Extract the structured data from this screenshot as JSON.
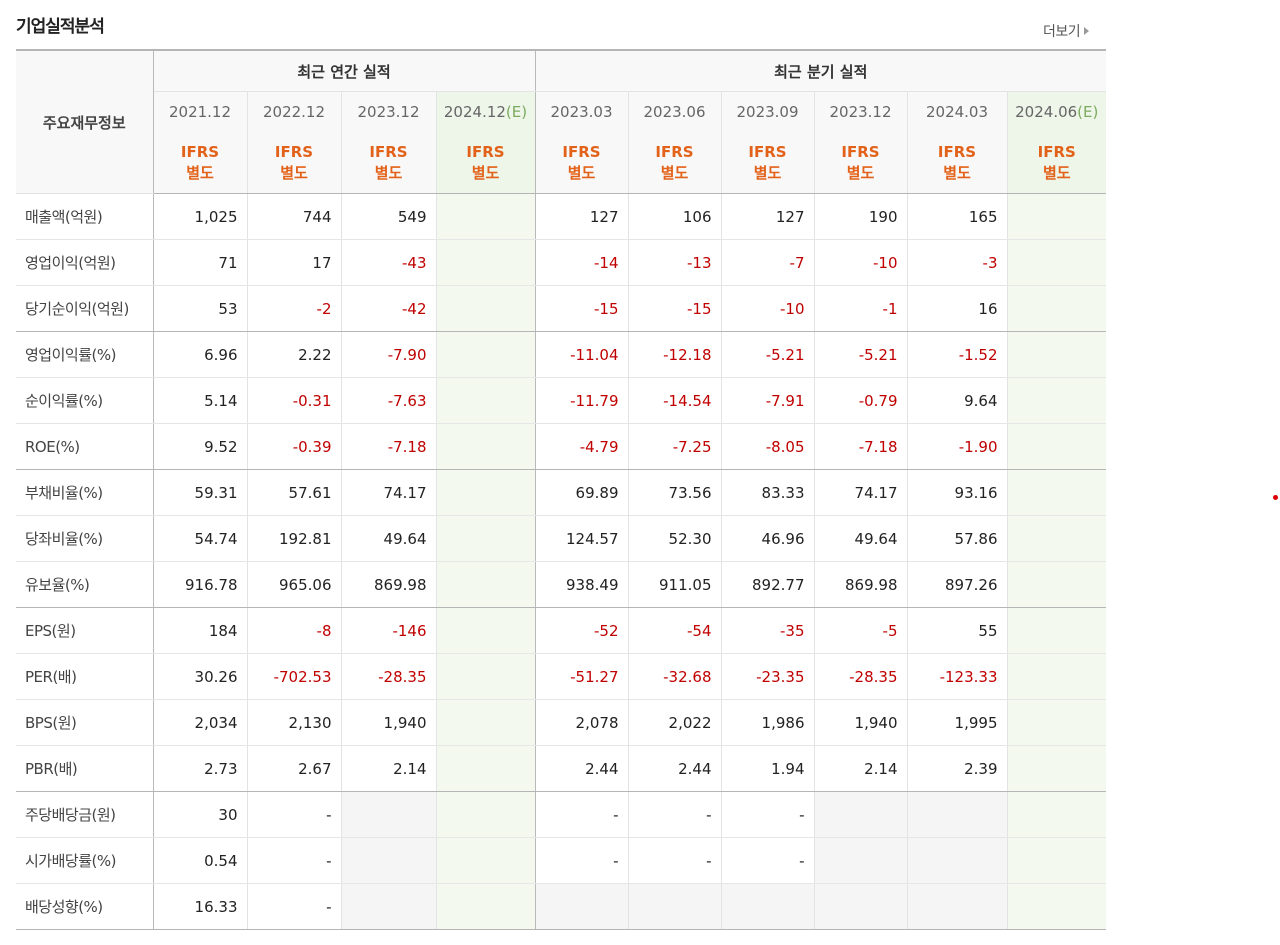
{
  "title": "기업실적분석",
  "more_label": "더보기",
  "header": {
    "row_label": "주요재무정보",
    "annual_group": "최근 연간 실적",
    "quarter_group": "최근 분기 실적",
    "annual_periods": [
      "2021.12",
      "2022.12",
      "2023.12",
      "2024.12"
    ],
    "quarter_periods": [
      "2023.03",
      "2023.06",
      "2023.09",
      "2023.12",
      "2024.03",
      "2024.06"
    ],
    "estimate_mark": "(E)",
    "ifrs_line1": "IFRS",
    "ifrs_line2": "별도"
  },
  "rows": [
    {
      "label": "매출액(억원)",
      "annual": [
        "1,025",
        "744",
        "549",
        ""
      ],
      "quarter": [
        "127",
        "106",
        "127",
        "190",
        "165",
        ""
      ]
    },
    {
      "label": "영업이익(억원)",
      "annual": [
        "71",
        "17",
        "-43",
        ""
      ],
      "quarter": [
        "-14",
        "-13",
        "-7",
        "-10",
        "-3",
        ""
      ]
    },
    {
      "label": "당기순이익(억원)",
      "annual": [
        "53",
        "-2",
        "-42",
        ""
      ],
      "quarter": [
        "-15",
        "-15",
        "-10",
        "-1",
        "16",
        ""
      ]
    },
    {
      "label": "영업이익률(%)",
      "annual": [
        "6.96",
        "2.22",
        "-7.90",
        ""
      ],
      "quarter": [
        "-11.04",
        "-12.18",
        "-5.21",
        "-5.21",
        "-1.52",
        ""
      ]
    },
    {
      "label": "순이익률(%)",
      "annual": [
        "5.14",
        "-0.31",
        "-7.63",
        ""
      ],
      "quarter": [
        "-11.79",
        "-14.54",
        "-7.91",
        "-0.79",
        "9.64",
        ""
      ]
    },
    {
      "label": "ROE(%)",
      "annual": [
        "9.52",
        "-0.39",
        "-7.18",
        ""
      ],
      "quarter": [
        "-4.79",
        "-7.25",
        "-8.05",
        "-7.18",
        "-1.90",
        ""
      ]
    },
    {
      "label": "부채비율(%)",
      "annual": [
        "59.31",
        "57.61",
        "74.17",
        ""
      ],
      "quarter": [
        "69.89",
        "73.56",
        "83.33",
        "74.17",
        "93.16",
        ""
      ]
    },
    {
      "label": "당좌비율(%)",
      "annual": [
        "54.74",
        "192.81",
        "49.64",
        ""
      ],
      "quarter": [
        "124.57",
        "52.30",
        "46.96",
        "49.64",
        "57.86",
        ""
      ]
    },
    {
      "label": "유보율(%)",
      "annual": [
        "916.78",
        "965.06",
        "869.98",
        ""
      ],
      "quarter": [
        "938.49",
        "911.05",
        "892.77",
        "869.98",
        "897.26",
        ""
      ]
    },
    {
      "label": "EPS(원)",
      "annual": [
        "184",
        "-8",
        "-146",
        ""
      ],
      "quarter": [
        "-52",
        "-54",
        "-35",
        "-5",
        "55",
        ""
      ]
    },
    {
      "label": "PER(배)",
      "annual": [
        "30.26",
        "-702.53",
        "-28.35",
        ""
      ],
      "quarter": [
        "-51.27",
        "-32.68",
        "-23.35",
        "-28.35",
        "-123.33",
        ""
      ]
    },
    {
      "label": "BPS(원)",
      "annual": [
        "2,034",
        "2,130",
        "1,940",
        ""
      ],
      "quarter": [
        "2,078",
        "2,022",
        "1,986",
        "1,940",
        "1,995",
        ""
      ]
    },
    {
      "label": "PBR(배)",
      "annual": [
        "2.73",
        "2.67",
        "2.14",
        ""
      ],
      "quarter": [
        "2.44",
        "2.44",
        "1.94",
        "2.14",
        "2.39",
        ""
      ]
    },
    {
      "label": "주당배당금(원)",
      "annual": [
        "30",
        "-",
        "",
        ""
      ],
      "quarter": [
        "-",
        "-",
        "-",
        "",
        "",
        ""
      ]
    },
    {
      "label": "시가배당률(%)",
      "annual": [
        "0.54",
        "-",
        "",
        ""
      ],
      "quarter": [
        "-",
        "-",
        "-",
        "",
        "",
        ""
      ]
    },
    {
      "label": "배당성향(%)",
      "annual": [
        "16.33",
        "-",
        "",
        ""
      ],
      "quarter": [
        "",
        "",
        "",
        "",
        "",
        ""
      ]
    }
  ],
  "colors": {
    "negative": "#c00000",
    "ifrs": "#e2621a",
    "estimate_bg": "#eef5e9"
  }
}
